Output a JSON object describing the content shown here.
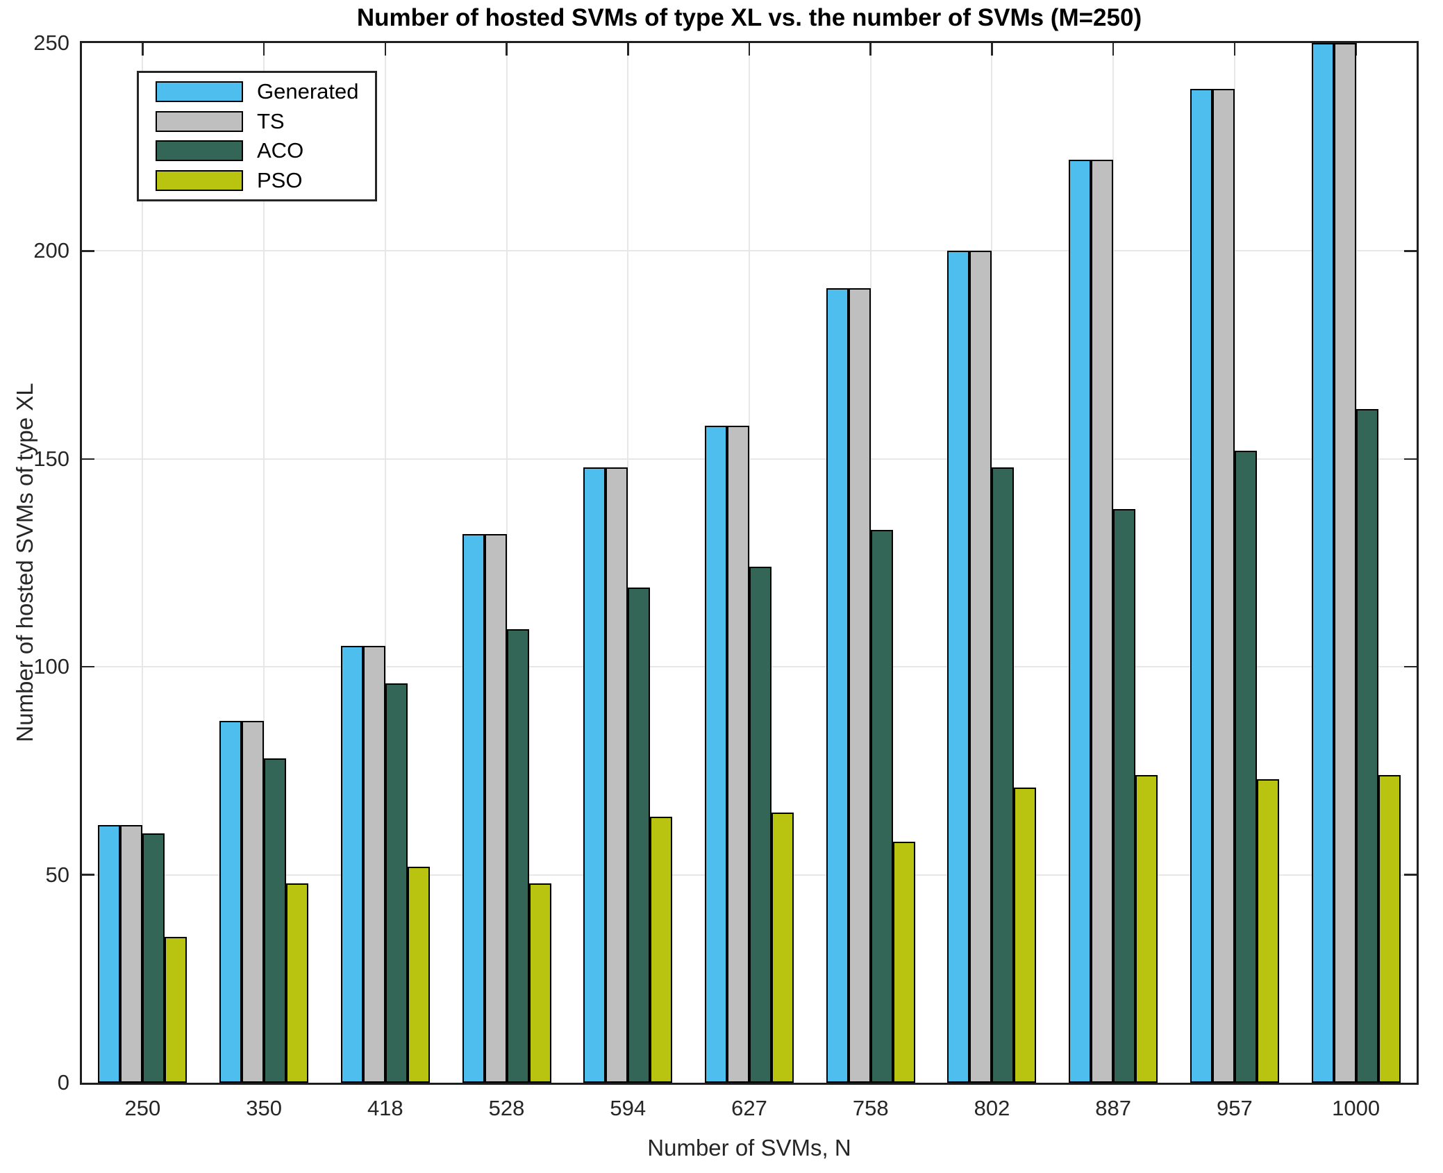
{
  "chart_data": {
    "type": "bar",
    "title": "Number of hosted SVMs of type XL vs. the number of SVMs (M=250)",
    "xlabel": "Number of SVMs, N",
    "ylabel": "Number of hosted SVMs of type XL",
    "categories": [
      "250",
      "350",
      "418",
      "528",
      "594",
      "627",
      "758",
      "802",
      "887",
      "957",
      "1000"
    ],
    "series": [
      {
        "name": "Generated",
        "color": "#4DBEEE",
        "values": [
          62,
          87,
          105,
          132,
          148,
          158,
          191,
          200,
          222,
          239,
          250
        ]
      },
      {
        "name": "TS",
        "color": "#BFBFBF",
        "values": [
          62,
          87,
          105,
          132,
          148,
          158,
          191,
          200,
          222,
          239,
          250
        ]
      },
      {
        "name": "ACO",
        "color": "#336657",
        "values": [
          60,
          78,
          96,
          109,
          119,
          124,
          133,
          148,
          138,
          152,
          162
        ]
      },
      {
        "name": "PSO",
        "color": "#B8C40F",
        "values": [
          35,
          48,
          52,
          48,
          64,
          65,
          58,
          71,
          74,
          73,
          74
        ]
      }
    ],
    "ylim": [
      0,
      250
    ],
    "ytick_step": 50,
    "grid": true,
    "legend_position": "top-left",
    "colors": {
      "grid": "#E7E7E7",
      "axis": "#1F1F1F",
      "bar_edge": "#000000",
      "text": "#262626"
    }
  }
}
